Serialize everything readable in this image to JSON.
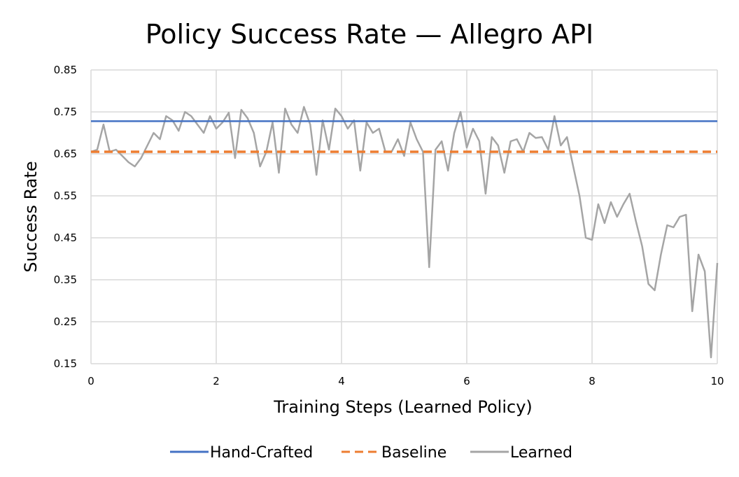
{
  "chart_data": {
    "type": "line",
    "title": "Policy Success Rate — Allegro API",
    "xlabel": "Training Steps (Learned Policy)",
    "ylabel": "Success Rate",
    "xlim": [
      0,
      10
    ],
    "ylim": [
      0.15,
      0.85
    ],
    "xticks": [
      0,
      2,
      4,
      6,
      8,
      10
    ],
    "yticks": [
      0.15,
      0.25,
      0.35,
      0.45,
      0.55,
      0.65,
      0.75,
      0.85
    ],
    "grid": true,
    "legend_position": "bottom",
    "series": [
      {
        "name": "Hand-Crafted",
        "color": "#4472c4",
        "style": "solid",
        "x": [
          0,
          10
        ],
        "y": [
          0.728,
          0.728
        ]
      },
      {
        "name": "Baseline",
        "color": "#ed7d31",
        "style": "dashed",
        "x": [
          0,
          10
        ],
        "y": [
          0.655,
          0.655
        ]
      },
      {
        "name": "Learned",
        "color": "#a5a5a5",
        "style": "solid",
        "x": [
          0,
          0.1,
          0.2,
          0.3,
          0.4,
          0.5,
          0.6,
          0.7,
          0.8,
          0.9,
          1.0,
          1.1,
          1.2,
          1.3,
          1.4,
          1.5,
          1.6,
          1.7,
          1.8,
          1.9,
          2.0,
          2.1,
          2.2,
          2.3,
          2.4,
          2.5,
          2.6,
          2.7,
          2.8,
          2.9,
          3.0,
          3.1,
          3.2,
          3.3,
          3.4,
          3.5,
          3.6,
          3.7,
          3.8,
          3.9,
          4.0,
          4.1,
          4.2,
          4.3,
          4.4,
          4.5,
          4.6,
          4.7,
          4.8,
          4.9,
          5.0,
          5.1,
          5.2,
          5.3,
          5.4,
          5.5,
          5.6,
          5.7,
          5.8,
          5.9,
          6.0,
          6.1,
          6.2,
          6.3,
          6.4,
          6.5,
          6.6,
          6.7,
          6.8,
          6.9,
          7.0,
          7.1,
          7.2,
          7.3,
          7.4,
          7.5,
          7.6,
          7.7,
          7.8,
          7.9,
          8.0,
          8.1,
          8.2,
          8.3,
          8.4,
          8.5,
          8.6,
          8.7,
          8.8,
          8.9,
          9.0,
          9.1,
          9.2,
          9.3,
          9.4,
          9.5,
          9.6,
          9.7,
          9.8,
          9.9,
          10.0
        ],
        "y": [
          0.655,
          0.66,
          0.72,
          0.655,
          0.66,
          0.645,
          0.63,
          0.62,
          0.64,
          0.67,
          0.7,
          0.685,
          0.74,
          0.73,
          0.705,
          0.75,
          0.74,
          0.72,
          0.7,
          0.74,
          0.71,
          0.725,
          0.748,
          0.64,
          0.755,
          0.735,
          0.7,
          0.62,
          0.655,
          0.725,
          0.605,
          0.758,
          0.72,
          0.7,
          0.762,
          0.72,
          0.6,
          0.73,
          0.66,
          0.758,
          0.74,
          0.71,
          0.73,
          0.61,
          0.725,
          0.7,
          0.71,
          0.655,
          0.655,
          0.685,
          0.645,
          0.725,
          0.685,
          0.655,
          0.38,
          0.66,
          0.68,
          0.61,
          0.7,
          0.75,
          0.665,
          0.71,
          0.68,
          0.555,
          0.69,
          0.67,
          0.605,
          0.68,
          0.685,
          0.655,
          0.7,
          0.688,
          0.69,
          0.66,
          0.74,
          0.67,
          0.69,
          0.62,
          0.55,
          0.45,
          0.445,
          0.53,
          0.485,
          0.535,
          0.5,
          0.53,
          0.555,
          0.49,
          0.43,
          0.34,
          0.325,
          0.41,
          0.48,
          0.475,
          0.5,
          0.505,
          0.275,
          0.41,
          0.37,
          0.165,
          0.39
        ]
      }
    ]
  }
}
